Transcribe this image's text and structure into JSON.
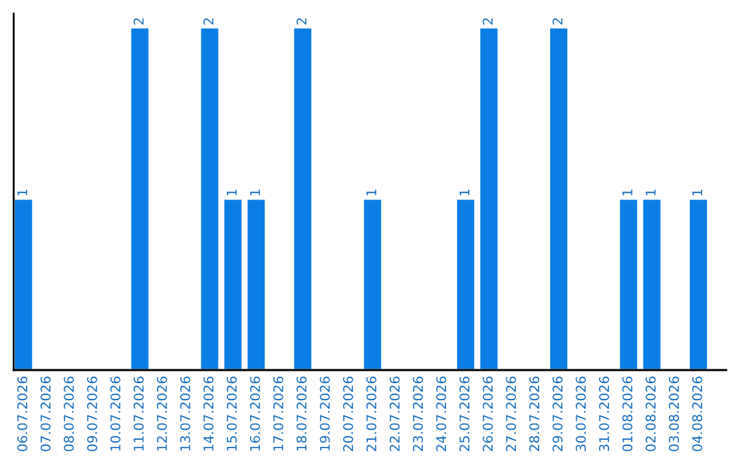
{
  "chart_data": {
    "type": "bar",
    "categories": [
      "06.07.2026",
      "07.07.2026",
      "08.07.2026",
      "09.07.2026",
      "10.07.2026",
      "11.07.2026",
      "12.07.2026",
      "13.07.2026",
      "14.07.2026",
      "15.07.2026",
      "16.07.2026",
      "17.07.2026",
      "18.07.2026",
      "19.07.2026",
      "20.07.2026",
      "21.07.2026",
      "22.07.2026",
      "23.07.2026",
      "24.07.2026",
      "25.07.2026",
      "26.07.2026",
      "27.07.2026",
      "28.07.2026",
      "29.07.2026",
      "30.07.2026",
      "31.07.2026",
      "01.08.2026",
      "02.08.2026",
      "03.08.2026",
      "04.08.2026"
    ],
    "values": [
      1,
      null,
      null,
      null,
      null,
      2,
      null,
      null,
      2,
      1,
      1,
      null,
      2,
      null,
      null,
      1,
      null,
      null,
      null,
      1,
      2,
      null,
      null,
      2,
      null,
      null,
      1,
      1,
      null,
      1
    ],
    "value_labels": [
      "1",
      null,
      null,
      null,
      null,
      "2",
      null,
      null,
      "2",
      "1",
      "1",
      null,
      "2",
      null,
      null,
      "1",
      null,
      null,
      null,
      "1",
      "2",
      null,
      null,
      "2",
      null,
      null,
      "1",
      "1",
      null,
      "1"
    ],
    "color": "#0a7ee4",
    "ylim": [
      0,
      2.08
    ],
    "tick_labels": "x",
    "grid": false,
    "legend": false
  }
}
